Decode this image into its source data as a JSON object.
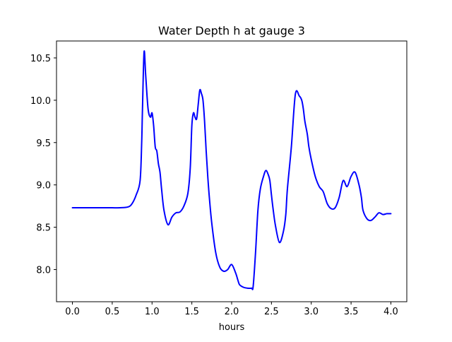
{
  "chart_data": {
    "type": "line",
    "title": "Water Depth h at gauge 3",
    "xlabel": "hours",
    "ylabel": "",
    "xlim": [
      -0.2,
      4.2
    ],
    "ylim": [
      7.62,
      10.7
    ],
    "xticks": [
      0.0,
      0.5,
      1.0,
      1.5,
      2.0,
      2.5,
      3.0,
      3.5,
      4.0
    ],
    "xtick_labels": [
      "0.0",
      "0.5",
      "1.0",
      "1.5",
      "2.0",
      "2.5",
      "3.0",
      "3.5",
      "4.0"
    ],
    "yticks": [
      8.0,
      8.5,
      9.0,
      9.5,
      10.0,
      10.5
    ],
    "ytick_labels": [
      "8.0",
      "8.5",
      "9.0",
      "9.5",
      "10.0",
      "10.5"
    ],
    "grid": false,
    "series": [
      {
        "color": "#0000ff",
        "x": [
          0.0,
          0.1,
          0.2,
          0.3,
          0.4,
          0.5,
          0.6,
          0.7,
          0.75,
          0.8,
          0.85,
          0.87,
          0.88,
          0.9,
          0.92,
          0.95,
          0.98,
          1.0,
          1.02,
          1.04,
          1.06,
          1.08,
          1.1,
          1.12,
          1.15,
          1.2,
          1.25,
          1.3,
          1.35,
          1.4,
          1.45,
          1.48,
          1.5,
          1.52,
          1.54,
          1.56,
          1.58,
          1.6,
          1.62,
          1.64,
          1.66,
          1.68,
          1.7,
          1.72,
          1.75,
          1.8,
          1.85,
          1.9,
          1.95,
          2.0,
          2.05,
          2.08,
          2.1,
          2.15,
          2.2,
          2.25,
          2.27,
          2.3,
          2.33,
          2.36,
          2.4,
          2.43,
          2.46,
          2.48,
          2.5,
          2.52,
          2.55,
          2.6,
          2.65,
          2.68,
          2.7,
          2.75,
          2.8,
          2.85,
          2.88,
          2.9,
          2.92,
          2.95,
          2.97,
          3.0,
          3.05,
          3.1,
          3.15,
          3.2,
          3.25,
          3.3,
          3.35,
          3.4,
          3.45,
          3.5,
          3.55,
          3.6,
          3.63,
          3.65,
          3.7,
          3.75,
          3.8,
          3.85,
          3.9,
          3.95,
          4.0
        ],
        "y": [
          8.73,
          8.73,
          8.73,
          8.73,
          8.73,
          8.73,
          8.73,
          8.74,
          8.78,
          8.88,
          9.05,
          9.5,
          9.9,
          10.57,
          10.3,
          9.9,
          9.8,
          9.85,
          9.7,
          9.45,
          9.4,
          9.25,
          9.15,
          8.95,
          8.7,
          8.53,
          8.62,
          8.67,
          8.68,
          8.75,
          8.9,
          9.2,
          9.7,
          9.85,
          9.8,
          9.78,
          9.95,
          10.12,
          10.08,
          10.0,
          9.75,
          9.4,
          9.1,
          8.85,
          8.55,
          8.2,
          8.03,
          7.98,
          8.0,
          8.06,
          7.96,
          7.87,
          7.82,
          7.79,
          7.78,
          7.78,
          7.8,
          8.2,
          8.7,
          8.95,
          9.1,
          9.17,
          9.12,
          9.05,
          8.88,
          8.72,
          8.52,
          8.32,
          8.45,
          8.65,
          8.95,
          9.45,
          10.07,
          10.05,
          10.0,
          9.9,
          9.75,
          9.6,
          9.45,
          9.3,
          9.1,
          8.98,
          8.92,
          8.78,
          8.72,
          8.73,
          8.85,
          9.05,
          8.98,
          9.1,
          9.15,
          9.0,
          8.85,
          8.7,
          8.6,
          8.58,
          8.62,
          8.67,
          8.65,
          8.66,
          8.66
        ]
      }
    ]
  }
}
